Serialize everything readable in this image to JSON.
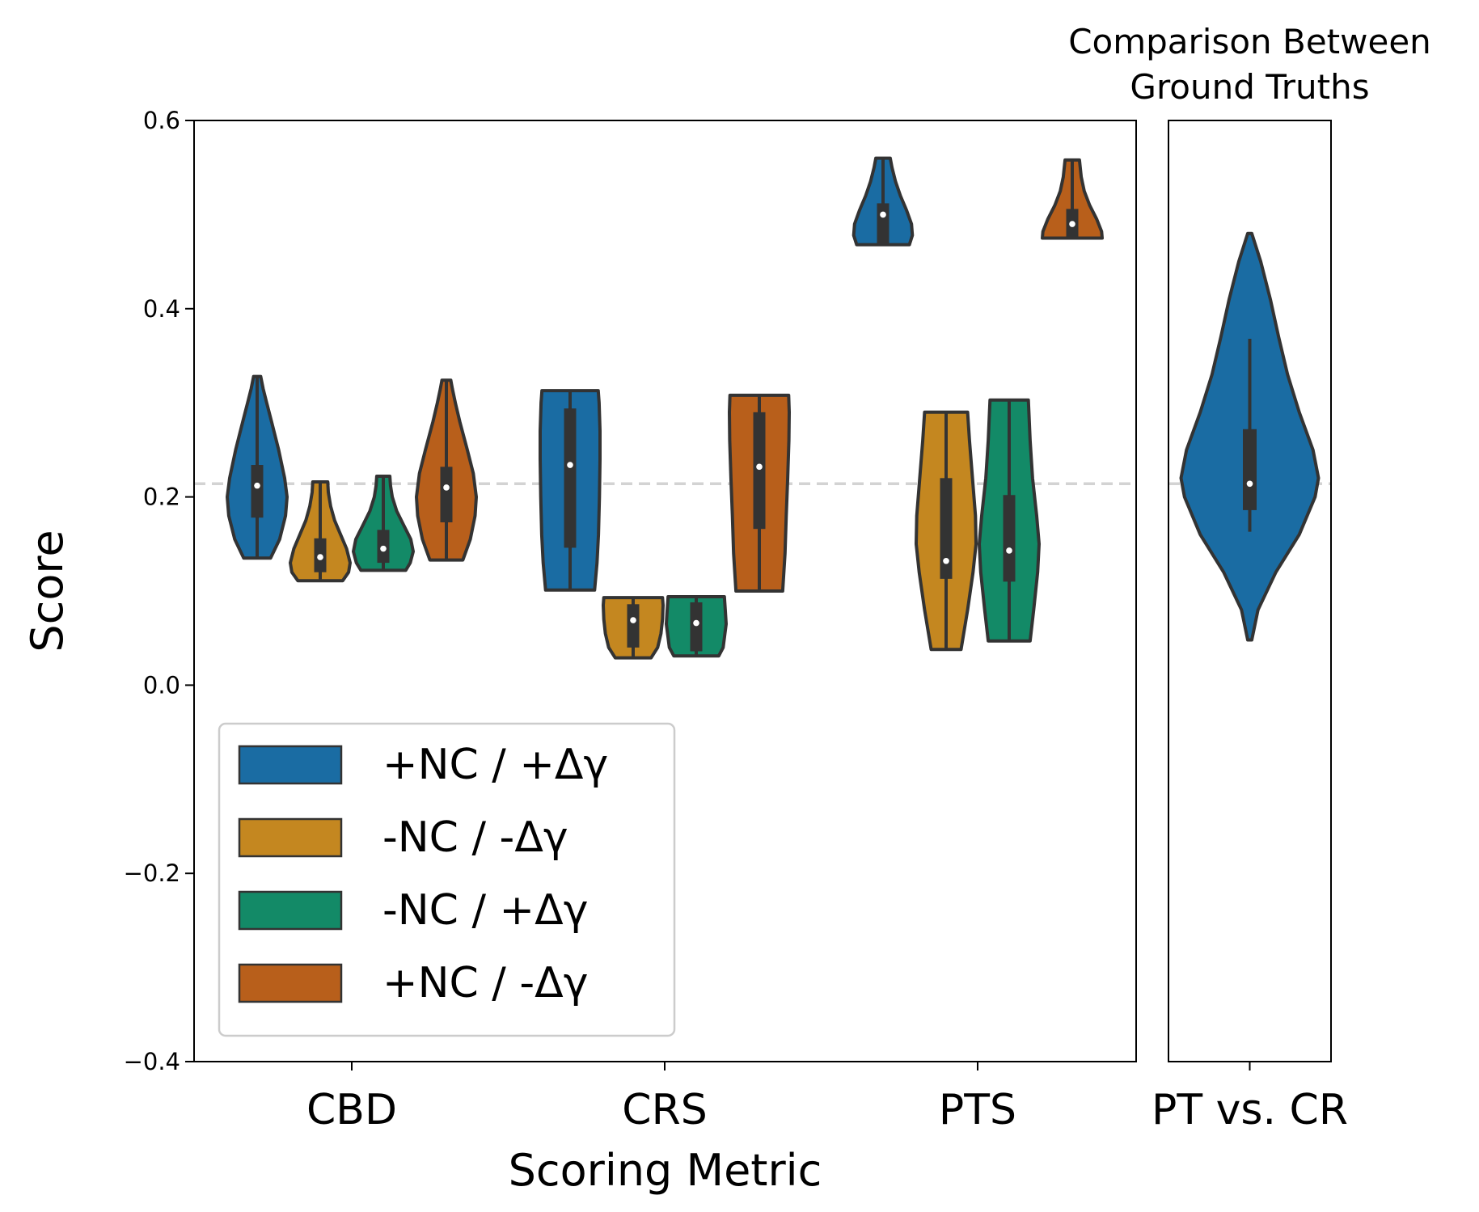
{
  "chart_data": [
    {
      "type": "violin",
      "xlabel": "Scoring Metric",
      "ylabel": "Score",
      "ylim": [
        -0.4,
        0.6
      ],
      "yticks": [
        -0.4,
        -0.2,
        0.0,
        0.2,
        0.4,
        0.6
      ],
      "ytick_labels": [
        "−0.4",
        "−0.2",
        "0.0",
        "0.2",
        "0.4",
        "0.6"
      ],
      "categories": [
        "CBD",
        "CRS",
        "PTS"
      ],
      "reference_line": 0.214,
      "legend_position": "lower-left",
      "series": [
        {
          "name": "+NC / +Δγ",
          "color": "#1a6ca3",
          "violins": [
            {
              "min": 0.135,
              "max": 0.328,
              "q1": 0.178,
              "q3": 0.234,
              "median": 0.212,
              "profile": [
                [
                  0.135,
                  0.45
                ],
                [
                  0.155,
                  0.75
                ],
                [
                  0.18,
                  0.95
                ],
                [
                  0.2,
                  1.0
                ],
                [
                  0.22,
                  0.92
                ],
                [
                  0.25,
                  0.72
                ],
                [
                  0.28,
                  0.48
                ],
                [
                  0.3,
                  0.32
                ],
                [
                  0.315,
                  0.2
                ],
                [
                  0.328,
                  0.12
                ]
              ]
            },
            {
              "min": 0.101,
              "max": 0.313,
              "q1": 0.146,
              "q3": 0.294,
              "median": 0.234,
              "profile": [
                [
                  0.101,
                  0.82
                ],
                [
                  0.13,
                  0.9
                ],
                [
                  0.16,
                  0.95
                ],
                [
                  0.2,
                  0.98
                ],
                [
                  0.24,
                  1.0
                ],
                [
                  0.27,
                  1.0
                ],
                [
                  0.3,
                  0.97
                ],
                [
                  0.313,
                  0.94
                ]
              ]
            },
            {
              "min": 0.468,
              "max": 0.56,
              "q1": 0.468,
              "q3": 0.512,
              "median": 0.5,
              "profile": [
                [
                  0.468,
                  0.88
                ],
                [
                  0.478,
                  0.98
                ],
                [
                  0.49,
                  0.95
                ],
                [
                  0.505,
                  0.78
                ],
                [
                  0.52,
                  0.58
                ],
                [
                  0.535,
                  0.42
                ],
                [
                  0.55,
                  0.3
                ],
                [
                  0.56,
                  0.24
                ]
              ]
            }
          ]
        },
        {
          "name": "-NC / -Δγ",
          "color": "#c48720",
          "violins": [
            {
              "min": 0.111,
              "max": 0.216,
              "q1": 0.12,
              "q3": 0.156,
              "median": 0.136,
              "profile": [
                [
                  0.111,
                  0.75
                ],
                [
                  0.12,
                  0.95
                ],
                [
                  0.13,
                  1.0
                ],
                [
                  0.145,
                  0.88
                ],
                [
                  0.16,
                  0.68
                ],
                [
                  0.175,
                  0.48
                ],
                [
                  0.19,
                  0.35
                ],
                [
                  0.205,
                  0.27
                ],
                [
                  0.216,
                  0.25
                ]
              ]
            },
            {
              "min": 0.029,
              "max": 0.093,
              "q1": 0.04,
              "q3": 0.086,
              "median": 0.069,
              "profile": [
                [
                  0.029,
                  0.6
                ],
                [
                  0.04,
                  0.82
                ],
                [
                  0.055,
                  0.93
                ],
                [
                  0.07,
                  0.98
                ],
                [
                  0.085,
                  1.0
                ],
                [
                  0.093,
                  0.98
                ]
              ]
            },
            {
              "min": 0.038,
              "max": 0.29,
              "q1": 0.113,
              "q3": 0.22,
              "median": 0.132,
              "profile": [
                [
                  0.038,
                  0.5
                ],
                [
                  0.08,
                  0.72
                ],
                [
                  0.12,
                  0.9
                ],
                [
                  0.15,
                  1.0
                ],
                [
                  0.18,
                  0.98
                ],
                [
                  0.22,
                  0.88
                ],
                [
                  0.26,
                  0.78
                ],
                [
                  0.29,
                  0.72
                ]
              ]
            }
          ]
        },
        {
          "name": "-NC / +Δγ",
          "color": "#138a67",
          "violins": [
            {
              "min": 0.122,
              "max": 0.222,
              "q1": 0.13,
              "q3": 0.165,
              "median": 0.145,
              "profile": [
                [
                  0.122,
                  0.75
                ],
                [
                  0.13,
                  0.9
                ],
                [
                  0.142,
                  1.0
                ],
                [
                  0.155,
                  0.92
                ],
                [
                  0.17,
                  0.68
                ],
                [
                  0.185,
                  0.45
                ],
                [
                  0.2,
                  0.3
                ],
                [
                  0.212,
                  0.24
                ],
                [
                  0.222,
                  0.22
                ]
              ]
            },
            {
              "min": 0.031,
              "max": 0.094,
              "q1": 0.036,
              "q3": 0.088,
              "median": 0.066,
              "profile": [
                [
                  0.031,
                  0.75
                ],
                [
                  0.04,
                  0.9
                ],
                [
                  0.055,
                  0.96
                ],
                [
                  0.065,
                  1.0
                ],
                [
                  0.08,
                  0.97
                ],
                [
                  0.094,
                  0.94
                ]
              ]
            },
            {
              "min": 0.047,
              "max": 0.303,
              "q1": 0.11,
              "q3": 0.202,
              "median": 0.143,
              "profile": [
                [
                  0.047,
                  0.7
                ],
                [
                  0.08,
                  0.82
                ],
                [
                  0.12,
                  0.95
                ],
                [
                  0.15,
                  1.0
                ],
                [
                  0.18,
                  0.92
                ],
                [
                  0.22,
                  0.78
                ],
                [
                  0.26,
                  0.7
                ],
                [
                  0.303,
                  0.64
                ]
              ]
            }
          ]
        },
        {
          "name": "+NC / -Δγ",
          "color": "#b85f1b",
          "violins": [
            {
              "min": 0.133,
              "max": 0.324,
              "q1": 0.173,
              "q3": 0.232,
              "median": 0.21,
              "profile": [
                [
                  0.133,
                  0.55
                ],
                [
                  0.155,
                  0.8
                ],
                [
                  0.18,
                  0.96
                ],
                [
                  0.2,
                  1.0
                ],
                [
                  0.225,
                  0.9
                ],
                [
                  0.25,
                  0.7
                ],
                [
                  0.28,
                  0.45
                ],
                [
                  0.3,
                  0.3
                ],
                [
                  0.315,
                  0.2
                ],
                [
                  0.324,
                  0.15
                ]
              ]
            },
            {
              "min": 0.1,
              "max": 0.308,
              "q1": 0.166,
              "q3": 0.29,
              "median": 0.232,
              "profile": [
                [
                  0.1,
                  0.78
                ],
                [
                  0.14,
                  0.86
                ],
                [
                  0.18,
                  0.9
                ],
                [
                  0.22,
                  0.95
                ],
                [
                  0.26,
                  0.99
                ],
                [
                  0.29,
                  1.0
                ],
                [
                  0.308,
                  0.98
                ]
              ]
            },
            {
              "min": 0.475,
              "max": 0.558,
              "q1": 0.475,
              "q3": 0.506,
              "median": 0.49,
              "profile": [
                [
                  0.475,
                  1.0
                ],
                [
                  0.482,
                  0.98
                ],
                [
                  0.495,
                  0.82
                ],
                [
                  0.51,
                  0.58
                ],
                [
                  0.525,
                  0.4
                ],
                [
                  0.54,
                  0.3
                ],
                [
                  0.558,
                  0.24
                ]
              ]
            }
          ]
        }
      ]
    },
    {
      "type": "violin",
      "title": "Comparison Between\nGround Truths",
      "categories": [
        "PT vs. CR"
      ],
      "ylim": [
        -0.4,
        0.6
      ],
      "reference_line": 0.214,
      "series": [
        {
          "name": "",
          "color": "#1a6ca3",
          "violins": [
            {
              "min": 0.048,
              "max": 0.48,
              "q1": 0.186,
              "q3": 0.272,
              "median": 0.214,
              "whisker_low": 0.163,
              "whisker_high": 0.368,
              "profile": [
                [
                  0.048,
                  0.03
                ],
                [
                  0.08,
                  0.12
                ],
                [
                  0.12,
                  0.38
                ],
                [
                  0.16,
                  0.72
                ],
                [
                  0.2,
                  0.95
                ],
                [
                  0.22,
                  1.0
                ],
                [
                  0.25,
                  0.92
                ],
                [
                  0.29,
                  0.72
                ],
                [
                  0.33,
                  0.55
                ],
                [
                  0.37,
                  0.42
                ],
                [
                  0.41,
                  0.3
                ],
                [
                  0.45,
                  0.16
                ],
                [
                  0.48,
                  0.03
                ]
              ]
            }
          ]
        }
      ]
    }
  ]
}
